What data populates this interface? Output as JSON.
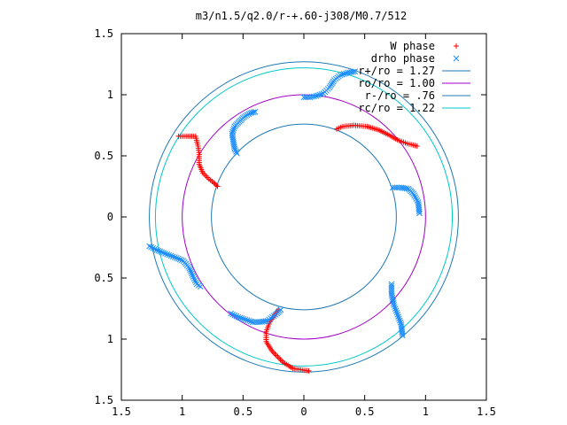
{
  "chart_data": {
    "type": "scatter",
    "title": "m3/n1.5/q2.0/r-+.60-j308/M0.7/512",
    "xlim": [
      -1.5,
      1.5
    ],
    "ylim": [
      -1.5,
      1.5
    ],
    "x_ticks": [
      "1.5",
      "1",
      "0.5",
      "0",
      "0.5",
      "1",
      "1.5"
    ],
    "y_ticks": [
      "1.5",
      "1",
      "0.5",
      "0",
      "0.5",
      "1",
      "1.5"
    ],
    "grid": false,
    "legend_position": "top-right",
    "series": [
      {
        "name": "W phase",
        "kind": "points",
        "marker": "plus",
        "color": "#ff0000",
        "arms": [
          {
            "start_angle_deg": 65,
            "points": [
              [
                0.27,
                0.72
              ],
              [
                0.32,
                0.74
              ],
              [
                0.41,
                0.75
              ],
              [
                0.52,
                0.74
              ],
              [
                0.62,
                0.71
              ],
              [
                0.7,
                0.67
              ],
              [
                0.77,
                0.63
              ],
              [
                0.85,
                0.6
              ],
              [
                0.93,
                0.58
              ]
            ]
          },
          {
            "start_angle_deg": 175,
            "points": [
              [
                -0.71,
                0.25
              ],
              [
                -0.74,
                0.28
              ],
              [
                -0.78,
                0.31
              ],
              [
                -0.83,
                0.36
              ],
              [
                -0.86,
                0.43
              ],
              [
                -0.86,
                0.51
              ],
              [
                -0.87,
                0.58
              ],
              [
                -0.89,
                0.66
              ],
              [
                -1.03,
                0.66
              ]
            ]
          },
          {
            "start_angle_deg": 285,
            "points": [
              [
                -0.21,
                -0.76
              ],
              [
                -0.24,
                -0.8
              ],
              [
                -0.28,
                -0.86
              ],
              [
                -0.31,
                -0.94
              ],
              [
                -0.31,
                -1.02
              ],
              [
                -0.26,
                -1.1
              ],
              [
                -0.17,
                -1.19
              ],
              [
                -0.09,
                -1.24
              ],
              [
                0.04,
                -1.26
              ]
            ]
          }
        ]
      },
      {
        "name": "drho phase",
        "kind": "points",
        "marker": "x",
        "color": "#1a8cff",
        "arms": [
          {
            "start_angle_deg": 41,
            "points": [
              [
                0.0,
                0.98
              ],
              [
                0.05,
                0.98
              ],
              [
                0.1,
                0.99
              ],
              [
                0.16,
                1.01
              ],
              [
                0.21,
                1.06
              ],
              [
                0.25,
                1.12
              ],
              [
                0.3,
                1.16
              ],
              [
                0.36,
                1.18
              ],
              [
                0.42,
                1.19
              ]
            ]
          },
          {
            "start_angle_deg": 131,
            "points": [
              [
                -0.55,
                0.52
              ],
              [
                -0.57,
                0.56
              ],
              [
                -0.58,
                0.62
              ],
              [
                -0.59,
                0.68
              ],
              [
                -0.57,
                0.74
              ],
              [
                -0.53,
                0.78
              ],
              [
                -0.49,
                0.82
              ],
              [
                -0.44,
                0.85
              ],
              [
                -0.4,
                0.86
              ]
            ]
          },
          {
            "start_angle_deg": 221,
            "points": [
              [
                -1.27,
                -0.24
              ],
              [
                -1.21,
                -0.27
              ],
              [
                -1.14,
                -0.3
              ],
              [
                -1.06,
                -0.33
              ],
              [
                -0.99,
                -0.36
              ],
              [
                -0.94,
                -0.42
              ],
              [
                -0.91,
                -0.49
              ],
              [
                -0.88,
                -0.55
              ],
              [
                -0.85,
                -0.57
              ]
            ]
          },
          {
            "start_angle_deg": 311,
            "points": [
              [
                -0.19,
                -0.76
              ],
              [
                -0.22,
                -0.79
              ],
              [
                -0.26,
                -0.82
              ],
              [
                -0.3,
                -0.85
              ],
              [
                -0.36,
                -0.86
              ],
              [
                -0.42,
                -0.86
              ],
              [
                -0.48,
                -0.84
              ],
              [
                -0.54,
                -0.82
              ],
              [
                -0.6,
                -0.79
              ]
            ]
          },
          {
            "start_angle_deg": 351,
            "points": [
              [
                0.72,
                -0.55
              ],
              [
                0.72,
                -0.63
              ],
              [
                0.74,
                -0.72
              ],
              [
                0.77,
                -0.8
              ],
              [
                0.8,
                -0.88
              ],
              [
                0.81,
                -0.97
              ]
            ]
          },
          {
            "start_angle_deg": 0,
            "points": [
              [
                0.73,
                0.24
              ],
              [
                0.8,
                0.24
              ],
              [
                0.86,
                0.23
              ],
              [
                0.9,
                0.19
              ],
              [
                0.94,
                0.12
              ],
              [
                0.95,
                0.03
              ]
            ]
          }
        ]
      },
      {
        "name": "r+/ro = 1.27",
        "kind": "circle",
        "radius": 1.27,
        "color": "#1f78b4"
      },
      {
        "name": "ro/ro = 1.00",
        "kind": "circle",
        "radius": 1.0,
        "color": "#a000c8"
      },
      {
        "name": "r-/ro = .76",
        "kind": "circle",
        "radius": 0.76,
        "color": "#1f78b4"
      },
      {
        "name": "rc/ro = 1.22",
        "kind": "circle",
        "radius": 1.22,
        "color": "#00c8c8"
      }
    ]
  }
}
